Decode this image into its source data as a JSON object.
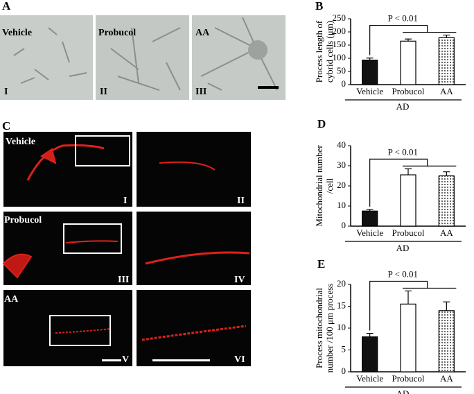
{
  "panels": {
    "A": {
      "letter": "A",
      "images": [
        {
          "name": "Vehicle",
          "numeral": "I"
        },
        {
          "name": "Probucol",
          "numeral": "II"
        },
        {
          "name": "AA",
          "numeral": "III"
        }
      ]
    },
    "B": {
      "letter": "B"
    },
    "C": {
      "letter": "C",
      "rows": [
        {
          "name": "Vehicle",
          "numerals": [
            "I",
            "II"
          ]
        },
        {
          "name": "Probucol",
          "numerals": [
            "III",
            "IV"
          ]
        },
        {
          "name": "AA",
          "numerals": [
            "V",
            "VI"
          ]
        }
      ]
    },
    "D": {
      "letter": "D"
    },
    "E": {
      "letter": "E"
    }
  },
  "chart_data": [
    {
      "type": "bar",
      "ylabel": [
        "Process length of",
        "cybrid cells (μm)"
      ],
      "categories": [
        "Vehicle",
        "Probucol",
        "AA"
      ],
      "values": [
        93,
        165,
        178
      ],
      "errors": [
        8,
        8,
        10
      ],
      "colors": [
        "#111111",
        "#ffffff",
        "#ffffff"
      ],
      "patterns": [
        "solid",
        "solid",
        "dots"
      ],
      "ylim": [
        0,
        250
      ],
      "yticks": [
        0,
        50,
        100,
        150,
        200,
        250
      ],
      "annotation": "P < 0.01",
      "group_label": "AD"
    },
    {
      "type": "bar",
      "ylabel": [
        "Mitochondrial number",
        "/cell"
      ],
      "categories": [
        "Vehicle",
        "Probucol",
        "AA"
      ],
      "values": [
        7.5,
        25.5,
        25
      ],
      "errors": [
        0.8,
        3,
        2
      ],
      "colors": [
        "#111111",
        "#ffffff",
        "#ffffff"
      ],
      "patterns": [
        "solid",
        "solid",
        "dots"
      ],
      "ylim": [
        0,
        40
      ],
      "yticks": [
        0,
        10,
        20,
        30,
        40
      ],
      "annotation": "P < 0.01",
      "group_label": "AD"
    },
    {
      "type": "bar",
      "ylabel": [
        "Process mitochondrial",
        "number /100 μm process"
      ],
      "categories": [
        "Vehicle",
        "Probucol",
        "AA"
      ],
      "values": [
        8,
        15.5,
        14
      ],
      "errors": [
        0.8,
        3,
        2
      ],
      "colors": [
        "#111111",
        "#ffffff",
        "#ffffff"
      ],
      "patterns": [
        "solid",
        "solid",
        "dots"
      ],
      "ylim": [
        0,
        20
      ],
      "yticks": [
        0,
        5,
        10,
        15,
        20
      ],
      "annotation": "P < 0.01",
      "group_label": "AD"
    }
  ]
}
